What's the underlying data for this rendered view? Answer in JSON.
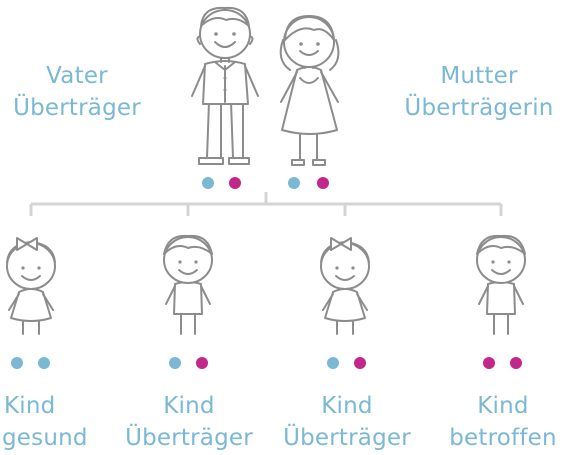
{
  "colors": {
    "allele_normal": "#7ab8d3",
    "allele_affected": "#c2278a",
    "label": "#7ab8d3",
    "tree_line": "#d4d4d4"
  },
  "parents": {
    "father": {
      "line1": "Vater",
      "line2": "Überträger",
      "alleles": [
        "normal",
        "affected"
      ]
    },
    "mother": {
      "line1": "Mutter",
      "line2": "Überträgerin",
      "alleles": [
        "normal",
        "affected"
      ]
    }
  },
  "children": [
    {
      "line1": "Kind",
      "line2": "gesund",
      "figure": "girl",
      "alleles": [
        "normal",
        "normal"
      ]
    },
    {
      "line1": "Kind",
      "line2": "Überträger",
      "figure": "boy",
      "alleles": [
        "normal",
        "affected"
      ]
    },
    {
      "line1": "Kind",
      "line2": "Überträger",
      "figure": "girl",
      "alleles": [
        "normal",
        "affected"
      ]
    },
    {
      "line1": "Kind",
      "line2": "betroffen",
      "figure": "boy",
      "alleles": [
        "affected",
        "affected"
      ]
    }
  ]
}
